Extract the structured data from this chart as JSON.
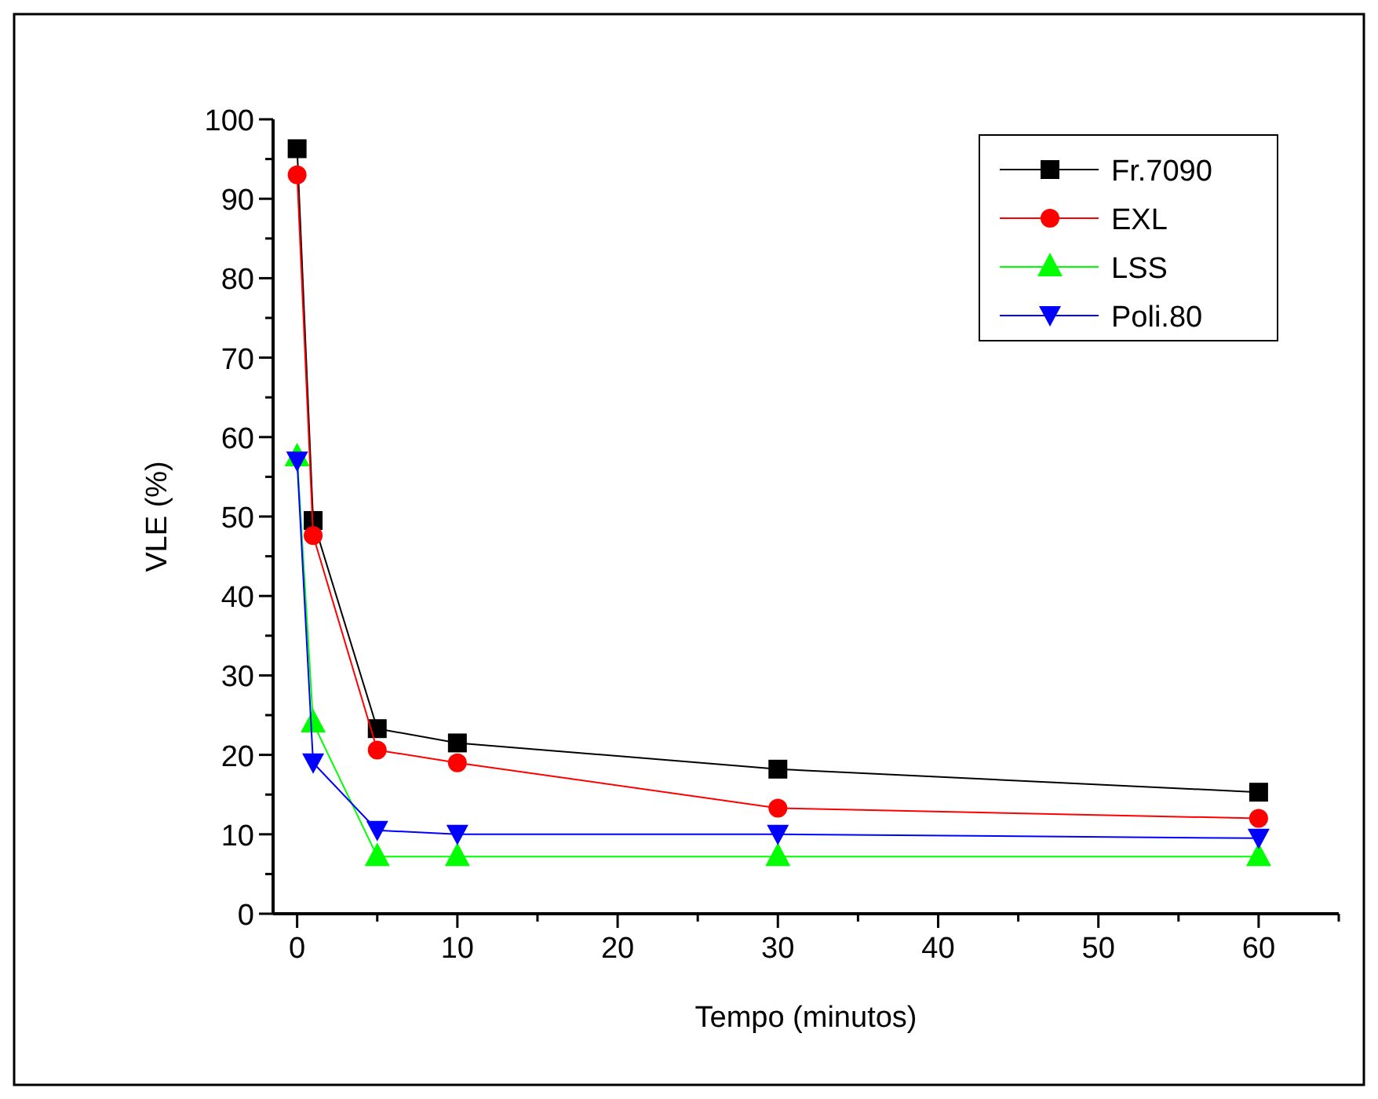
{
  "chart_data": {
    "type": "line",
    "xlabel": "Tempo (minutos)",
    "ylabel": "VLE (%)",
    "x": [
      0,
      1,
      5,
      10,
      30,
      60
    ],
    "xlim": [
      -1.5,
      65
    ],
    "xticks": [
      0,
      {
        "value": 5,
        "label": null
      },
      10,
      {
        "value": 15,
        "label": null
      },
      20,
      {
        "value": 25,
        "label": null
      },
      30,
      {
        "value": 35,
        "label": null
      },
      40,
      {
        "value": 45,
        "label": null
      },
      50,
      {
        "value": 55,
        "label": null
      },
      60,
      {
        "value": 65,
        "label": null
      }
    ],
    "ylim": [
      0,
      100
    ],
    "yticks": [
      0,
      {
        "value": 5,
        "label": null
      },
      10,
      {
        "value": 15,
        "label": null
      },
      20,
      {
        "value": 25,
        "label": null
      },
      30,
      {
        "value": 35,
        "label": null
      },
      40,
      {
        "value": 45,
        "label": null
      },
      50,
      {
        "value": 55,
        "label": null
      },
      60,
      {
        "value": 65,
        "label": null
      },
      70,
      {
        "value": 75,
        "label": null
      },
      80,
      {
        "value": 85,
        "label": null
      },
      90,
      {
        "value": 95,
        "label": null
      },
      100
    ],
    "grid": false,
    "legend": "top right",
    "line_style": "solid",
    "series": [
      {
        "name": "Fr.7090",
        "color": "#000000",
        "marker": "square",
        "values": [
          96.3,
          49.5,
          23.3,
          21.5,
          18.2,
          15.3
        ]
      },
      {
        "name": "EXL",
        "color": "#ff0000",
        "marker": "circle",
        "values": [
          93,
          47.6,
          20.6,
          19,
          13.3,
          12
        ]
      },
      {
        "name": "LSS",
        "color": "#00ff00",
        "marker": "triangle",
        "values": [
          57.5,
          24,
          7.2,
          7.2,
          7.2,
          7.2
        ]
      },
      {
        "name": "Poli.80",
        "color": "#0000ff",
        "marker": "triangle-down",
        "values": [
          57,
          19,
          10.5,
          10,
          10,
          9.5
        ]
      }
    ]
  }
}
